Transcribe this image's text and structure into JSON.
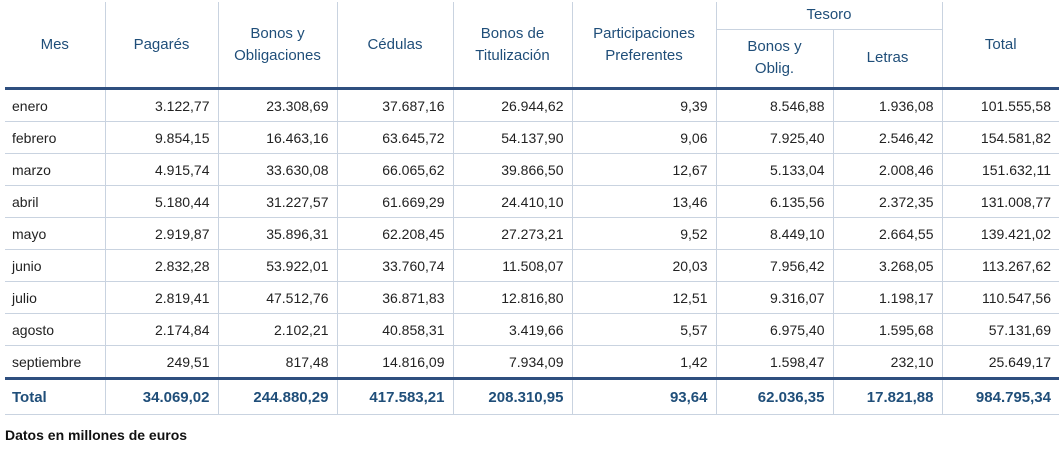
{
  "header": {
    "mes": "Mes",
    "pagares": "Pagarés",
    "bonos_obligaciones": [
      "Bonos y",
      "Obligaciones"
    ],
    "cedulas": "Cédulas",
    "bonos_titulizacion": [
      "Bonos de",
      "Titulización"
    ],
    "participaciones": [
      "Participaciones",
      "Preferentes"
    ],
    "tesoro": "Tesoro",
    "tesoro_bonos": [
      "Bonos y",
      "Oblig."
    ],
    "tesoro_letras": "Letras",
    "total": "Total"
  },
  "rows": [
    {
      "mes": "enero",
      "values": [
        "3.122,77",
        "23.308,69",
        "37.687,16",
        "26.944,62",
        "9,39",
        "8.546,88",
        "1.936,08",
        "101.555,58"
      ]
    },
    {
      "mes": "febrero",
      "values": [
        "9.854,15",
        "16.463,16",
        "63.645,72",
        "54.137,90",
        "9,06",
        "7.925,40",
        "2.546,42",
        "154.581,82"
      ]
    },
    {
      "mes": "marzo",
      "values": [
        "4.915,74",
        "33.630,08",
        "66.065,62",
        "39.866,50",
        "12,67",
        "5.133,04",
        "2.008,46",
        "151.632,11"
      ]
    },
    {
      "mes": "abril",
      "values": [
        "5.180,44",
        "31.227,57",
        "61.669,29",
        "24.410,10",
        "13,46",
        "6.135,56",
        "2.372,35",
        "131.008,77"
      ]
    },
    {
      "mes": "mayo",
      "values": [
        "2.919,87",
        "35.896,31",
        "62.208,45",
        "27.273,21",
        "9,52",
        "8.449,10",
        "2.664,55",
        "139.421,02"
      ]
    },
    {
      "mes": "junio",
      "values": [
        "2.832,28",
        "53.922,01",
        "33.760,74",
        "11.508,07",
        "20,03",
        "7.956,42",
        "3.268,05",
        "113.267,62"
      ]
    },
    {
      "mes": "julio",
      "values": [
        "2.819,41",
        "47.512,76",
        "36.871,83",
        "12.816,80",
        "12,51",
        "9.316,07",
        "1.198,17",
        "110.547,56"
      ]
    },
    {
      "mes": "agosto",
      "values": [
        "2.174,84",
        "2.102,21",
        "40.858,31",
        "3.419,66",
        "5,57",
        "6.975,40",
        "1.595,68",
        "57.131,69"
      ]
    },
    {
      "mes": "septiembre",
      "values": [
        "249,51",
        "817,48",
        "14.816,09",
        "7.934,09",
        "1,42",
        "1.598,47",
        "232,10",
        "25.649,17"
      ]
    }
  ],
  "totals": {
    "label": "Total",
    "values": [
      "34.069,02",
      "244.880,29",
      "417.583,21",
      "208.310,95",
      "93,64",
      "62.036,35",
      "17.821,88",
      "984.795,34"
    ]
  },
  "footnote": "Datos en millones de euros",
  "colors": {
    "header_text": "#1f4e79",
    "border": "#c9d3e0",
    "thick_rule": "#2f4f7f"
  }
}
